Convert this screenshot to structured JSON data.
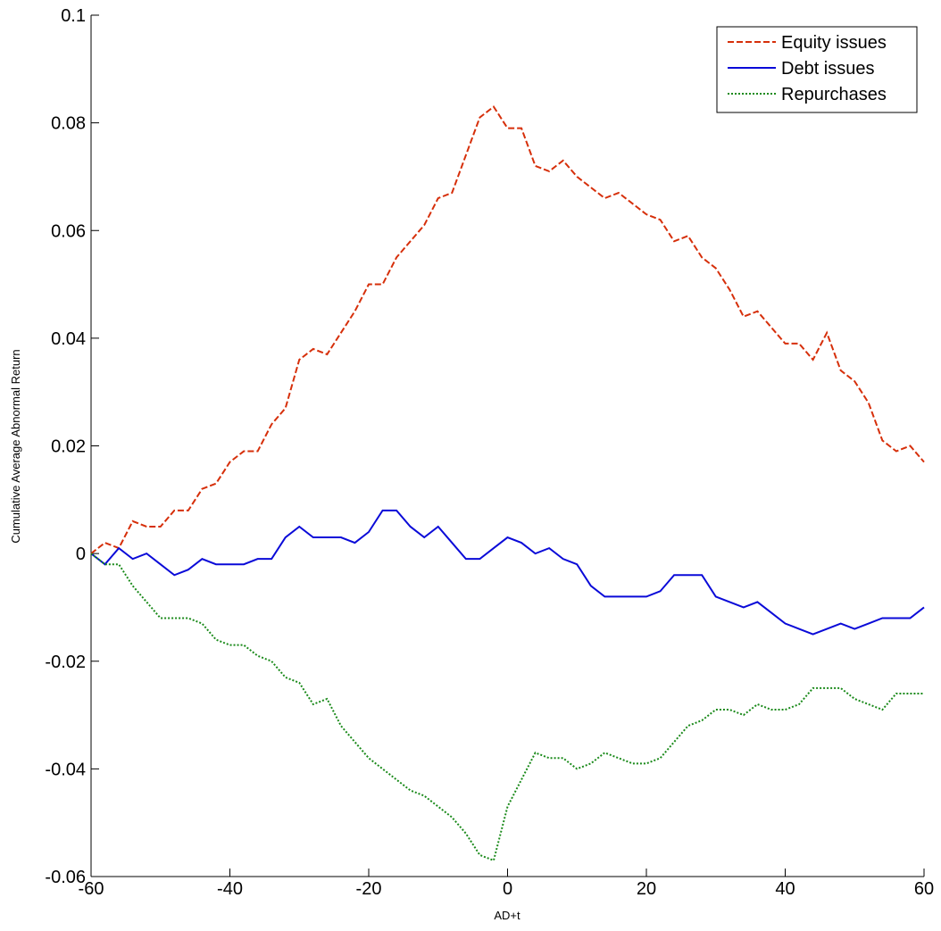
{
  "chart_data": {
    "type": "line",
    "xlabel": "AD+t",
    "ylabel": "Cumulative Average Abnormal Return",
    "x": [
      -60,
      -58,
      -56,
      -54,
      -52,
      -50,
      -48,
      -46,
      -44,
      -42,
      -40,
      -38,
      -36,
      -34,
      -32,
      -30,
      -28,
      -26,
      -24,
      -22,
      -20,
      -18,
      -16,
      -14,
      -12,
      -10,
      -8,
      -6,
      -4,
      -2,
      0,
      2,
      4,
      6,
      8,
      10,
      12,
      14,
      16,
      18,
      20,
      22,
      24,
      26,
      28,
      30,
      32,
      34,
      36,
      38,
      40,
      42,
      44,
      46,
      48,
      50,
      52,
      54,
      56,
      58,
      60
    ],
    "series": [
      {
        "name": "Equity issues",
        "color": "#d62f0a",
        "linestyle": "dashed",
        "values": [
          0,
          0.002,
          0.001,
          0.006,
          0.005,
          0.005,
          0.008,
          0.008,
          0.012,
          0.013,
          0.017,
          0.019,
          0.019,
          0.024,
          0.027,
          0.036,
          0.038,
          0.037,
          0.041,
          0.045,
          0.05,
          0.05,
          0.055,
          0.058,
          0.061,
          0.066,
          0.067,
          0.074,
          0.081,
          0.083,
          0.079,
          0.079,
          0.072,
          0.071,
          0.073,
          0.07,
          0.068,
          0.066,
          0.067,
          0.065,
          0.063,
          0.062,
          0.058,
          0.059,
          0.055,
          0.053,
          0.049,
          0.044,
          0.045,
          0.042,
          0.039,
          0.039,
          0.036,
          0.041,
          0.034,
          0.032,
          0.028,
          0.021,
          0.019,
          0.02,
          0.017
        ]
      },
      {
        "name": "Debt issues",
        "color": "#0a0ad8",
        "linestyle": "solid",
        "values": [
          0,
          -0.002,
          0.001,
          -0.001,
          0,
          -0.002,
          -0.004,
          -0.003,
          -0.001,
          -0.002,
          -0.002,
          -0.002,
          -0.001,
          -0.001,
          0.003,
          0.005,
          0.003,
          0.003,
          0.003,
          0.002,
          0.004,
          0.008,
          0.008,
          0.005,
          0.003,
          0.005,
          0.002,
          -0.001,
          -0.001,
          0.001,
          0.003,
          0.002,
          0,
          0.001,
          -0.001,
          -0.002,
          -0.006,
          -0.008,
          -0.008,
          -0.008,
          -0.008,
          -0.007,
          -0.004,
          -0.004,
          -0.004,
          -0.008,
          -0.009,
          -0.01,
          -0.009,
          -0.011,
          -0.013,
          -0.014,
          -0.015,
          -0.014,
          -0.013,
          -0.014,
          -0.013,
          -0.012,
          -0.012,
          -0.012,
          -0.01
        ]
      },
      {
        "name": "Repurchases",
        "color": "#1a8a1a",
        "linestyle": "dotted",
        "values": [
          0,
          -0.002,
          -0.002,
          -0.006,
          -0.009,
          -0.012,
          -0.012,
          -0.012,
          -0.013,
          -0.016,
          -0.017,
          -0.017,
          -0.019,
          -0.02,
          -0.023,
          -0.024,
          -0.028,
          -0.027,
          -0.032,
          -0.035,
          -0.038,
          -0.04,
          -0.042,
          -0.044,
          -0.045,
          -0.047,
          -0.049,
          -0.052,
          -0.056,
          -0.057,
          -0.047,
          -0.042,
          -0.037,
          -0.038,
          -0.038,
          -0.04,
          -0.039,
          -0.037,
          -0.038,
          -0.039,
          -0.039,
          -0.038,
          -0.035,
          -0.032,
          -0.031,
          -0.029,
          -0.029,
          -0.03,
          -0.028,
          -0.029,
          -0.029,
          -0.028,
          -0.025,
          -0.025,
          -0.025,
          -0.027,
          -0.028,
          -0.029,
          -0.026,
          -0.026,
          -0.026
        ]
      }
    ],
    "xlim": [
      -60,
      60
    ],
    "xticks": [
      -60,
      -40,
      -20,
      0,
      20,
      40,
      60
    ],
    "ylim": [
      -0.06,
      0.1
    ],
    "yticks": [
      -0.06,
      -0.04,
      -0.02,
      0,
      0.02,
      0.04,
      0.06,
      0.08,
      0.1
    ],
    "grid": false,
    "legend": "top-right"
  }
}
